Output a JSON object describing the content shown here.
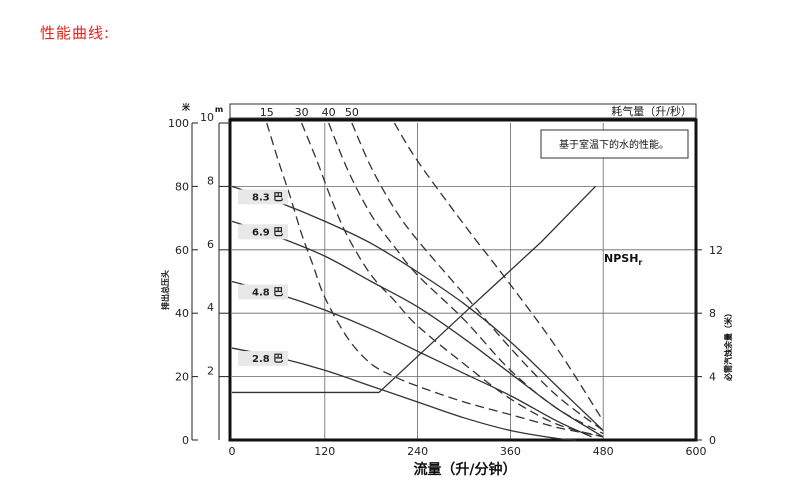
{
  "page": {
    "section_title": "性能曲线:"
  },
  "chart_data": {
    "type": "line",
    "title": "",
    "xlabel": "流量（升/分钟）",
    "xlim": [
      0,
      600
    ],
    "x_ticks": [
      "0",
      "120",
      "240",
      "360",
      "480",
      "600"
    ],
    "y_left_unit_label": "米",
    "y_left_title": "排出总压头",
    "y_left_ticks": [
      "0",
      "20",
      "40",
      "60",
      "80",
      "100"
    ],
    "y_left_lim": [
      0,
      100
    ],
    "y_mid_unit_label": "m",
    "y_mid_ticks": [
      "2",
      "4",
      "6",
      "8",
      "10"
    ],
    "y_right_title": "必需汽蚀余量（米）",
    "y_right_ticks": [
      "0",
      "4",
      "8",
      "12"
    ],
    "y_right_lim": [
      0,
      20
    ],
    "top_axis_title": "耗气量（升/秒）",
    "top_axis_ticks": [
      "15",
      "30",
      "40",
      "50"
    ],
    "note": "基于室温下的水的性能。",
    "npsh_label": "NPSH",
    "npsh_subscript": "r",
    "grid": true,
    "pressure_series": [
      {
        "name": "8.3 巴",
        "x": [
          0,
          60,
          120,
          180,
          240,
          300,
          360,
          420,
          480
        ],
        "y": [
          80,
          75,
          69,
          62,
          53,
          43,
          31,
          17,
          3
        ]
      },
      {
        "name": "6.9 巴",
        "x": [
          0,
          60,
          120,
          180,
          240,
          300,
          360,
          420,
          480
        ],
        "y": [
          69,
          64,
          58,
          50,
          42,
          32,
          21,
          10,
          1
        ]
      },
      {
        "name": "4.8 巴",
        "x": [
          0,
          60,
          120,
          180,
          240,
          300,
          360,
          420,
          465
        ],
        "y": [
          50,
          46,
          41,
          35,
          28,
          21,
          14,
          6,
          1
        ]
      },
      {
        "name": "2.8 巴",
        "x": [
          0,
          60,
          120,
          180,
          240,
          300,
          360,
          420,
          445
        ],
        "y": [
          29,
          26,
          22,
          17,
          12,
          7,
          3,
          0.5,
          0
        ]
      }
    ],
    "air_consumption_series": [
      {
        "name": "15",
        "x": [
          45,
          60,
          75,
          90,
          105,
          120,
          150,
          180,
          210,
          240,
          300,
          360,
          420,
          460,
          480
        ],
        "y": [
          100,
          88,
          77,
          65,
          55,
          45,
          32,
          24,
          20,
          17,
          12,
          8,
          4,
          2,
          1
        ]
      },
      {
        "name": "30",
        "x": [
          90,
          110,
          130,
          150,
          180,
          210,
          240,
          300,
          360,
          420,
          480
        ],
        "y": [
          100,
          88,
          75,
          64,
          52,
          44,
          36,
          24,
          13,
          5,
          1
        ]
      },
      {
        "name": "40",
        "x": [
          125,
          150,
          180,
          210,
          240,
          300,
          360,
          420,
          480
        ],
        "y": [
          100,
          85,
          71,
          61,
          52,
          38,
          22,
          10,
          2
        ]
      },
      {
        "name": "50",
        "x": [
          155,
          180,
          210,
          240,
          300,
          360,
          420,
          480
        ],
        "y": [
          100,
          86,
          73,
          63,
          46,
          29,
          14,
          3
        ]
      },
      {
        "name": "",
        "x": [
          210,
          240,
          300,
          360,
          420,
          480
        ],
        "y": [
          100,
          88,
          68,
          49,
          29,
          6
        ]
      }
    ],
    "npsh_series": {
      "x": [
        0,
        190,
        300,
        400,
        470
      ],
      "y_right": [
        3.0,
        3.0,
        8.0,
        12.5,
        16.0
      ]
    }
  }
}
